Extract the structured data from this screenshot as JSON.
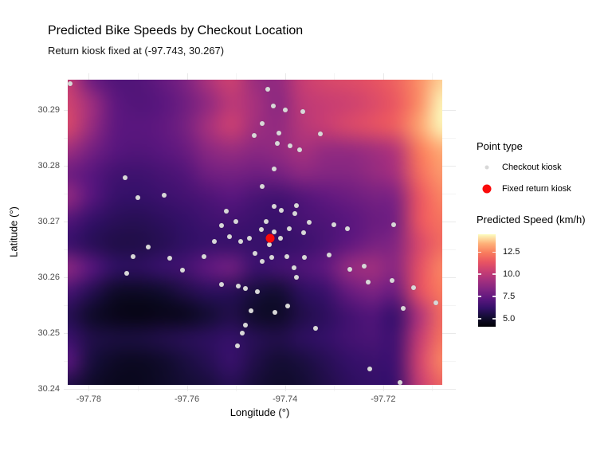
{
  "colors": {
    "checkout_point": "#d8d8d8",
    "fixed_point": "#fa0a0a",
    "grid_major": "#e9e9e9",
    "grid_minor": "#f4f4f4",
    "tick_label": "#4d4d4d"
  },
  "legend": {
    "point_type": {
      "title": "Point type",
      "items": [
        {
          "label": "Checkout kiosk",
          "marker": "gray-dot"
        },
        {
          "label": "Fixed return kiosk",
          "marker": "red-dot"
        }
      ]
    },
    "colorbar": {
      "title": "Predicted Speed (km/h)",
      "ticks": [
        12.5,
        10.0,
        7.5,
        5.0
      ],
      "domain": [
        4.1,
        14.5
      ],
      "palette_name": "magma",
      "palette": [
        "#000004",
        "#120d31",
        "#331068",
        "#5a167e",
        "#7f2482",
        "#a3307e",
        "#c83e73",
        "#e95462",
        "#f97c5d",
        "#feb078",
        "#fcfdbf"
      ]
    }
  },
  "chart_data": {
    "type": "heatmap+scatter",
    "title": "Predicted Bike Speeds by Checkout Location",
    "subtitle": "Return kiosk fixed at (-97.743, 30.267)",
    "xlabel": "Longitude (°)",
    "ylabel": "Latitude (°)",
    "xlim": [
      -97.7851,
      -97.7052
    ],
    "ylim": [
      30.2396,
      30.2966
    ],
    "x_ticks": [
      -97.78,
      -97.76,
      -97.74,
      -97.72
    ],
    "x_minor_ticks": [
      -97.77,
      -97.75,
      -97.73,
      -97.71
    ],
    "y_ticks": [
      30.29,
      30.28,
      30.27,
      30.26,
      30.25,
      30.24
    ],
    "y_minor_ticks": [
      30.285,
      30.275,
      30.265,
      30.255,
      30.245
    ],
    "grid": true,
    "legend_position": "right",
    "heatmap": {
      "value_name": "Predicted Speed (km/h)",
      "lon_range": [
        -97.7843,
        -97.708
      ],
      "lat_range": [
        30.2955,
        30.2407
      ],
      "values_order": "rows top (north) to bottom (south), 17 columns west to east",
      "values": [
        [
          10.3,
          7.8,
          7.0,
          7.0,
          7.5,
          8.2,
          9.6,
          10.5,
          9.0,
          8.8,
          10.3,
          10.8,
          11.0,
          11.3,
          11.8,
          12.8,
          13.9
        ],
        [
          10.6,
          9.2,
          7.4,
          7.0,
          7.2,
          7.8,
          8.8,
          10.0,
          9.4,
          8.6,
          10.0,
          10.3,
          10.5,
          10.9,
          11.5,
          12.8,
          14.4
        ],
        [
          10.8,
          9.0,
          7.4,
          7.2,
          7.4,
          8.0,
          9.4,
          10.4,
          9.2,
          8.8,
          9.8,
          10.3,
          10.8,
          11.2,
          11.7,
          13.2,
          14.4
        ],
        [
          9.2,
          8.0,
          7.2,
          7.0,
          7.2,
          7.6,
          8.6,
          9.0,
          8.6,
          8.8,
          9.4,
          8.9,
          8.9,
          9.2,
          9.8,
          12.4,
          13.4
        ],
        [
          7.8,
          7.2,
          6.6,
          6.5,
          6.7,
          7.0,
          7.8,
          8.0,
          7.8,
          8.0,
          8.6,
          8.4,
          8.4,
          8.8,
          9.4,
          12.0,
          13.0
        ],
        [
          8.8,
          7.2,
          6.3,
          6.2,
          6.4,
          6.6,
          6.9,
          7.2,
          6.8,
          6.6,
          7.0,
          7.4,
          7.7,
          8.0,
          8.3,
          11.4,
          12.6
        ],
        [
          7.0,
          6.2,
          5.9,
          5.8,
          6.0,
          6.2,
          6.5,
          6.6,
          6.4,
          6.3,
          6.7,
          6.9,
          7.2,
          7.6,
          8.0,
          11.4,
          12.2
        ],
        [
          6.4,
          5.9,
          5.6,
          5.6,
          5.8,
          6.1,
          6.3,
          6.3,
          6.3,
          6.2,
          6.4,
          6.8,
          7.4,
          8.0,
          8.4,
          10.8,
          12.0
        ],
        [
          8.6,
          7.2,
          6.1,
          6.0,
          6.3,
          6.6,
          7.4,
          7.8,
          6.4,
          6.6,
          6.9,
          7.4,
          8.9,
          9.2,
          8.6,
          11.2,
          12.6
        ],
        [
          6.8,
          5.8,
          5.0,
          4.9,
          5.1,
          5.6,
          6.0,
          5.9,
          5.4,
          5.2,
          6.0,
          6.4,
          7.6,
          8.2,
          7.8,
          11.2,
          12.4
        ],
        [
          5.8,
          5.0,
          4.6,
          4.5,
          4.6,
          4.7,
          5.2,
          5.6,
          5.0,
          4.9,
          5.6,
          6.0,
          6.6,
          7.0,
          6.4,
          9.6,
          12.0
        ],
        [
          6.4,
          5.6,
          5.4,
          5.4,
          5.6,
          5.8,
          6.0,
          6.2,
          5.8,
          5.6,
          6.0,
          6.2,
          6.6,
          6.8,
          6.6,
          10.2,
          12.2
        ],
        [
          7.2,
          5.4,
          4.9,
          4.8,
          5.0,
          5.4,
          5.8,
          6.3,
          5.6,
          5.2,
          5.4,
          5.8,
          6.2,
          6.4,
          6.6,
          10.6,
          12.6
        ],
        [
          5.6,
          5.0,
          4.7,
          4.7,
          4.9,
          5.2,
          5.4,
          5.8,
          5.3,
          5.0,
          5.2,
          5.6,
          6.0,
          6.2,
          6.4,
          10.2,
          11.8
        ]
      ]
    },
    "fixed_point": {
      "label": "Fixed return kiosk",
      "lon": -97.743,
      "lat": 30.267
    },
    "checkout_points": [
      [
        -97.7838,
        30.2948
      ],
      [
        -97.7726,
        30.2779
      ],
      [
        -97.77,
        30.2743
      ],
      [
        -97.7646,
        30.2748
      ],
      [
        -97.752,
        30.2719
      ],
      [
        -97.75,
        30.27
      ],
      [
        -97.7529,
        30.2693
      ],
      [
        -97.7463,
        30.2855
      ],
      [
        -97.7446,
        30.2876
      ],
      [
        -97.7436,
        30.2937
      ],
      [
        -97.7424,
        30.2908
      ],
      [
        -97.7399,
        30.2901
      ],
      [
        -97.7364,
        30.2898
      ],
      [
        -97.7412,
        30.2859
      ],
      [
        -97.7415,
        30.2841
      ],
      [
        -97.7389,
        30.2836
      ],
      [
        -97.737,
        30.2829
      ],
      [
        -97.7328,
        30.2857
      ],
      [
        -97.7422,
        30.2795
      ],
      [
        -97.7446,
        30.2763
      ],
      [
        -97.7423,
        30.2728
      ],
      [
        -97.7377,
        30.2729
      ],
      [
        -97.7408,
        30.2721
      ],
      [
        -97.738,
        30.2714
      ],
      [
        -97.7439,
        30.2701
      ],
      [
        -97.7351,
        30.2699
      ],
      [
        -97.7449,
        30.2686
      ],
      [
        -97.7422,
        30.2682
      ],
      [
        -97.7392,
        30.2687
      ],
      [
        -97.7409,
        30.267
      ],
      [
        -97.7473,
        30.2671
      ],
      [
        -97.7362,
        30.268
      ],
      [
        -97.7301,
        30.2694
      ],
      [
        -97.7432,
        30.2659
      ],
      [
        -97.7462,
        30.2643
      ],
      [
        -97.7427,
        30.2636
      ],
      [
        -97.7397,
        30.2638
      ],
      [
        -97.7361,
        30.2636
      ],
      [
        -97.7311,
        30.2641
      ],
      [
        -97.7447,
        30.2629
      ],
      [
        -97.7381,
        30.2617
      ],
      [
        -97.7273,
        30.2688
      ],
      [
        -97.7178,
        30.2694
      ],
      [
        -97.7377,
        30.26
      ],
      [
        -97.7268,
        30.2615
      ],
      [
        -97.7238,
        30.2621
      ],
      [
        -97.723,
        30.2592
      ],
      [
        -97.7182,
        30.2595
      ],
      [
        -97.7138,
        30.2582
      ],
      [
        -97.7394,
        30.2549
      ],
      [
        -97.742,
        30.2537
      ],
      [
        -97.7338,
        30.2509
      ],
      [
        -97.7159,
        30.2545
      ],
      [
        -97.7092,
        30.2555
      ],
      [
        -97.7227,
        30.2436
      ],
      [
        -97.7165,
        30.2412
      ],
      [
        -97.7679,
        30.2654
      ],
      [
        -97.771,
        30.2638
      ],
      [
        -97.7635,
        30.2635
      ],
      [
        -97.7609,
        30.2613
      ],
      [
        -97.7722,
        30.2608
      ],
      [
        -97.7565,
        30.2638
      ],
      [
        -97.7544,
        30.2665
      ],
      [
        -97.7514,
        30.2673
      ],
      [
        -97.749,
        30.2664
      ],
      [
        -97.753,
        30.2588
      ],
      [
        -97.7495,
        30.2584
      ],
      [
        -97.7481,
        30.2581
      ],
      [
        -97.7457,
        30.2575
      ],
      [
        -97.747,
        30.2541
      ],
      [
        -97.7481,
        30.2514
      ],
      [
        -97.7488,
        30.25
      ],
      [
        -97.7497,
        30.2477
      ]
    ]
  }
}
